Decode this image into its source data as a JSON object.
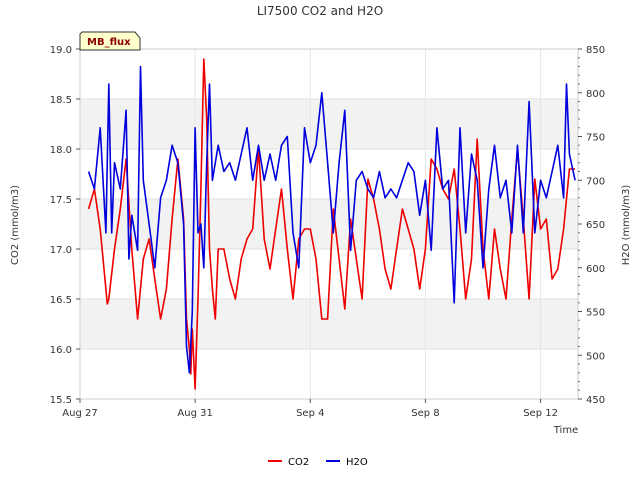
{
  "chart_data": {
    "type": "line",
    "title": "LI7500 CO2 and H2O",
    "badge": "MB_flux",
    "xlabel": "Time",
    "ylabel_left": "CO2 (mmol/m3)",
    "ylabel_right": "H2O (mmol/m3)",
    "ylim_left": [
      15.5,
      19.0
    ],
    "ylim_right": [
      450,
      850
    ],
    "y_ticks_left": [
      "15.5",
      "16.0",
      "16.5",
      "17.0",
      "17.5",
      "18.0",
      "18.5",
      "19.0"
    ],
    "y_ticks_right": [
      "450",
      "500",
      "550",
      "600",
      "650",
      "700",
      "750",
      "800",
      "850"
    ],
    "x_range_days": [
      0,
      17.3
    ],
    "x_ticks": [
      {
        "day": 0,
        "label": "Aug 27"
      },
      {
        "day": 4,
        "label": "Aug 31"
      },
      {
        "day": 8,
        "label": "Sep 4"
      },
      {
        "day": 12,
        "label": "Sep 8"
      },
      {
        "day": 16,
        "label": "Sep 12"
      }
    ],
    "grid": true,
    "shaded_bands": true,
    "legend_position": "bottom",
    "series": [
      {
        "name": "CO2",
        "axis": "left",
        "color": "#ee0000",
        "x": [
          0.3,
          0.5,
          0.7,
          0.9,
          0.95,
          1.0,
          1.2,
          1.4,
          1.6,
          1.8,
          2.0,
          2.2,
          2.4,
          2.6,
          2.8,
          3.0,
          3.2,
          3.4,
          3.6,
          3.7,
          3.8,
          3.85,
          3.9,
          4.0,
          4.1,
          4.2,
          4.3,
          4.4,
          4.5,
          4.6,
          4.7,
          4.8,
          5.0,
          5.2,
          5.4,
          5.6,
          5.8,
          6.0,
          6.2,
          6.4,
          6.6,
          6.8,
          7.0,
          7.2,
          7.4,
          7.6,
          7.8,
          8.0,
          8.2,
          8.4,
          8.6,
          8.8,
          9.0,
          9.2,
          9.4,
          9.6,
          9.8,
          10.0,
          10.2,
          10.4,
          10.6,
          10.8,
          11.0,
          11.2,
          11.4,
          11.6,
          11.8,
          12.0,
          12.2,
          12.4,
          12.6,
          12.8,
          13.0,
          13.2,
          13.4,
          13.6,
          13.8,
          14.0,
          14.2,
          14.4,
          14.6,
          14.8,
          15.0,
          15.2,
          15.4,
          15.6,
          15.8,
          16.0,
          16.2,
          16.4,
          16.6,
          16.8,
          17.0,
          17.2
        ],
        "values": [
          17.4,
          17.6,
          17.2,
          16.6,
          16.45,
          16.5,
          17.0,
          17.4,
          17.9,
          17.0,
          16.3,
          16.9,
          17.1,
          16.7,
          16.3,
          16.6,
          17.3,
          17.9,
          17.3,
          16.3,
          16.0,
          15.75,
          16.2,
          15.6,
          16.5,
          17.6,
          18.9,
          18.3,
          17.0,
          16.6,
          16.3,
          17.0,
          17.0,
          16.7,
          16.5,
          16.9,
          17.1,
          17.2,
          18.0,
          17.1,
          16.8,
          17.2,
          17.6,
          17.0,
          16.5,
          17.1,
          17.2,
          17.2,
          16.9,
          16.3,
          16.3,
          17.4,
          16.9,
          16.4,
          17.3,
          16.9,
          16.5,
          17.7,
          17.5,
          17.2,
          16.8,
          16.6,
          17.0,
          17.4,
          17.2,
          17.0,
          16.6,
          17.0,
          17.9,
          17.8,
          17.6,
          17.5,
          17.8,
          17.2,
          16.5,
          16.9,
          18.1,
          17.0,
          16.5,
          17.2,
          16.8,
          16.5,
          17.3,
          18.0,
          17.3,
          16.5,
          17.7,
          17.2,
          17.3,
          16.7,
          16.8,
          17.2,
          17.8,
          17.8
        ]
      },
      {
        "name": "H2O",
        "axis": "right",
        "color": "#0000dd",
        "x": [
          0.3,
          0.5,
          0.7,
          0.9,
          1.0,
          1.1,
          1.2,
          1.4,
          1.6,
          1.7,
          1.8,
          2.0,
          2.1,
          2.2,
          2.4,
          2.6,
          2.8,
          3.0,
          3.2,
          3.4,
          3.6,
          3.7,
          3.8,
          3.9,
          4.0,
          4.1,
          4.2,
          4.3,
          4.4,
          4.5,
          4.6,
          4.8,
          5.0,
          5.2,
          5.4,
          5.6,
          5.8,
          6.0,
          6.2,
          6.4,
          6.6,
          6.8,
          7.0,
          7.2,
          7.4,
          7.6,
          7.8,
          8.0,
          8.2,
          8.4,
          8.6,
          8.8,
          9.0,
          9.2,
          9.4,
          9.6,
          9.8,
          10.0,
          10.2,
          10.4,
          10.6,
          10.8,
          11.0,
          11.2,
          11.4,
          11.6,
          11.8,
          12.0,
          12.2,
          12.4,
          12.6,
          12.8,
          13.0,
          13.2,
          13.4,
          13.6,
          13.8,
          14.0,
          14.2,
          14.4,
          14.6,
          14.8,
          15.0,
          15.2,
          15.4,
          15.6,
          15.8,
          16.0,
          16.2,
          16.4,
          16.6,
          16.8,
          16.9,
          17.0,
          17.2
        ],
        "values": [
          710,
          690,
          760,
          640,
          810,
          640,
          720,
          690,
          780,
          610,
          660,
          620,
          830,
          700,
          650,
          600,
          680,
          700,
          740,
          720,
          650,
          510,
          480,
          550,
          760,
          640,
          650,
          600,
          720,
          810,
          700,
          740,
          710,
          720,
          700,
          730,
          760,
          700,
          740,
          700,
          730,
          700,
          740,
          750,
          640,
          600,
          760,
          720,
          740,
          800,
          720,
          640,
          720,
          780,
          620,
          700,
          710,
          690,
          680,
          710,
          680,
          690,
          680,
          700,
          720,
          710,
          660,
          700,
          620,
          760,
          690,
          700,
          560,
          760,
          640,
          730,
          700,
          600,
          690,
          740,
          680,
          700,
          640,
          740,
          640,
          790,
          640,
          700,
          680,
          710,
          740,
          680,
          810,
          730,
          700
        ]
      }
    ]
  }
}
